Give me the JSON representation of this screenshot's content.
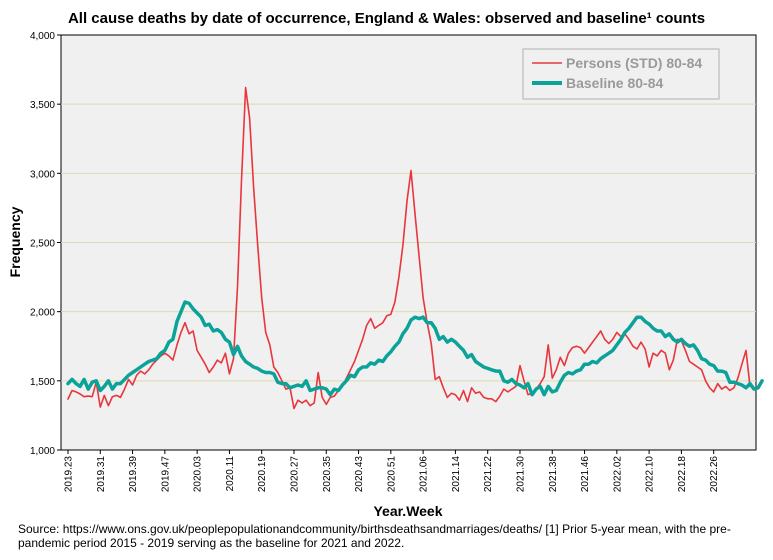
{
  "chart_data": {
    "type": "line",
    "title": "All cause deaths by date of occurrence, England & Wales: observed and baseline¹ counts",
    "xlabel": "Year.Week",
    "ylabel": "Frequency",
    "ylim": [
      1000,
      4000
    ],
    "yticks": [
      1000,
      1500,
      2000,
      2500,
      3000,
      3500,
      4000
    ],
    "ytick_labels": [
      "1,000",
      "1,500",
      "2,000",
      "2,500",
      "3,000",
      "3,500",
      "4,000"
    ],
    "xtick_labels": [
      "2019.23",
      "2019.31",
      "2019.39",
      "2019.47",
      "2020.03",
      "2020.11",
      "2020.19",
      "2020.27",
      "2020.35",
      "2020.43",
      "2020.51",
      "2021.06",
      "2021.14",
      "2021.22",
      "2021.30",
      "2021.38",
      "2021.46",
      "2022.02",
      "2022.10",
      "2022.18",
      "2022.26"
    ],
    "legend": {
      "position": "top-right"
    },
    "series": [
      {
        "name": "Persons (STD) 80-84",
        "color": "#e8363c",
        "values": [
          1368,
          1430,
          1420,
          1405,
          1385,
          1390,
          1385,
          1490,
          1310,
          1395,
          1320,
          1385,
          1395,
          1380,
          1440,
          1510,
          1470,
          1540,
          1570,
          1550,
          1580,
          1620,
          1650,
          1680,
          1700,
          1680,
          1650,
          1760,
          1850,
          1920,
          1840,
          1860,
          1720,
          1670,
          1620,
          1560,
          1600,
          1650,
          1630,
          1700,
          1550,
          1660,
          2180,
          2950,
          3620,
          3400,
          2900,
          2480,
          2100,
          1850,
          1760,
          1600,
          1560,
          1500,
          1440,
          1450,
          1300,
          1360,
          1340,
          1360,
          1320,
          1340,
          1560,
          1380,
          1330,
          1380,
          1390,
          1430,
          1460,
          1520,
          1580,
          1640,
          1720,
          1800,
          1900,
          1950,
          1880,
          1900,
          1920,
          1970,
          1980,
          2070,
          2250,
          2480,
          2800,
          3020,
          2700,
          2400,
          2100,
          1920,
          1770,
          1510,
          1530,
          1450,
          1380,
          1410,
          1400,
          1360,
          1430,
          1350,
          1450,
          1410,
          1420,
          1380,
          1370,
          1370,
          1350,
          1390,
          1440,
          1420,
          1440,
          1460,
          1610,
          1500,
          1400,
          1410,
          1440,
          1480,
          1530,
          1760,
          1520,
          1580,
          1670,
          1610,
          1700,
          1740,
          1750,
          1740,
          1700,
          1740,
          1780,
          1820,
          1860,
          1800,
          1770,
          1800,
          1850,
          1820,
          1840,
          1800,
          1750,
          1730,
          1780,
          1730,
          1600,
          1700,
          1680,
          1720,
          1700,
          1580,
          1650,
          1800,
          1790,
          1720,
          1640,
          1620,
          1600,
          1580,
          1500,
          1450,
          1420,
          1480,
          1440,
          1460,
          1430,
          1450,
          1520,
          1620,
          1720,
          1460
        ],
        "line_width": 1.6
      },
      {
        "name": "Baseline 80-84",
        "color": "#0ba399",
        "values": [
          1480,
          1510,
          1480,
          1460,
          1510,
          1440,
          1490,
          1500,
          1430,
          1460,
          1500,
          1440,
          1480,
          1480,
          1510,
          1540,
          1560,
          1580,
          1600,
          1620,
          1640,
          1650,
          1660,
          1700,
          1720,
          1780,
          1800,
          1930,
          2000,
          2070,
          2060,
          2020,
          1990,
          1960,
          1900,
          1910,
          1860,
          1870,
          1850,
          1800,
          1780,
          1690,
          1750,
          1680,
          1640,
          1620,
          1600,
          1590,
          1570,
          1560,
          1560,
          1550,
          1490,
          1480,
          1480,
          1450,
          1460,
          1470,
          1460,
          1500,
          1430,
          1440,
          1450,
          1450,
          1440,
          1400,
          1440,
          1430,
          1470,
          1500,
          1540,
          1530,
          1580,
          1600,
          1600,
          1630,
          1620,
          1650,
          1640,
          1680,
          1710,
          1750,
          1780,
          1840,
          1880,
          1940,
          1960,
          1950,
          1960,
          1920,
          1920,
          1880,
          1800,
          1820,
          1780,
          1800,
          1780,
          1750,
          1720,
          1670,
          1690,
          1640,
          1620,
          1600,
          1590,
          1580,
          1570,
          1570,
          1500,
          1490,
          1510,
          1480,
          1470,
          1450,
          1480,
          1400,
          1440,
          1460,
          1400,
          1460,
          1420,
          1430,
          1490,
          1540,
          1560,
          1550,
          1570,
          1580,
          1620,
          1620,
          1640,
          1630,
          1660,
          1680,
          1700,
          1720,
          1760,
          1800,
          1850,
          1880,
          1920,
          1960,
          1960,
          1930,
          1910,
          1880,
          1860,
          1860,
          1820,
          1840,
          1800,
          1780,
          1800,
          1770,
          1750,
          1760,
          1720,
          1660,
          1650,
          1620,
          1610,
          1570,
          1570,
          1560,
          1490,
          1490,
          1480,
          1470,
          1450,
          1480,
          1440,
          1450,
          1500
        ],
        "line_width": 3.5
      }
    ]
  },
  "source_text": "Source: https://www.ons.gov.uk/peoplepopulationandcommunity/birthsdeathsandmarriages/deaths/  [1] Prior 5-year mean, with the pre-pandemic period 2015 - 2019 serving as the baseline for 2021 and 2022."
}
